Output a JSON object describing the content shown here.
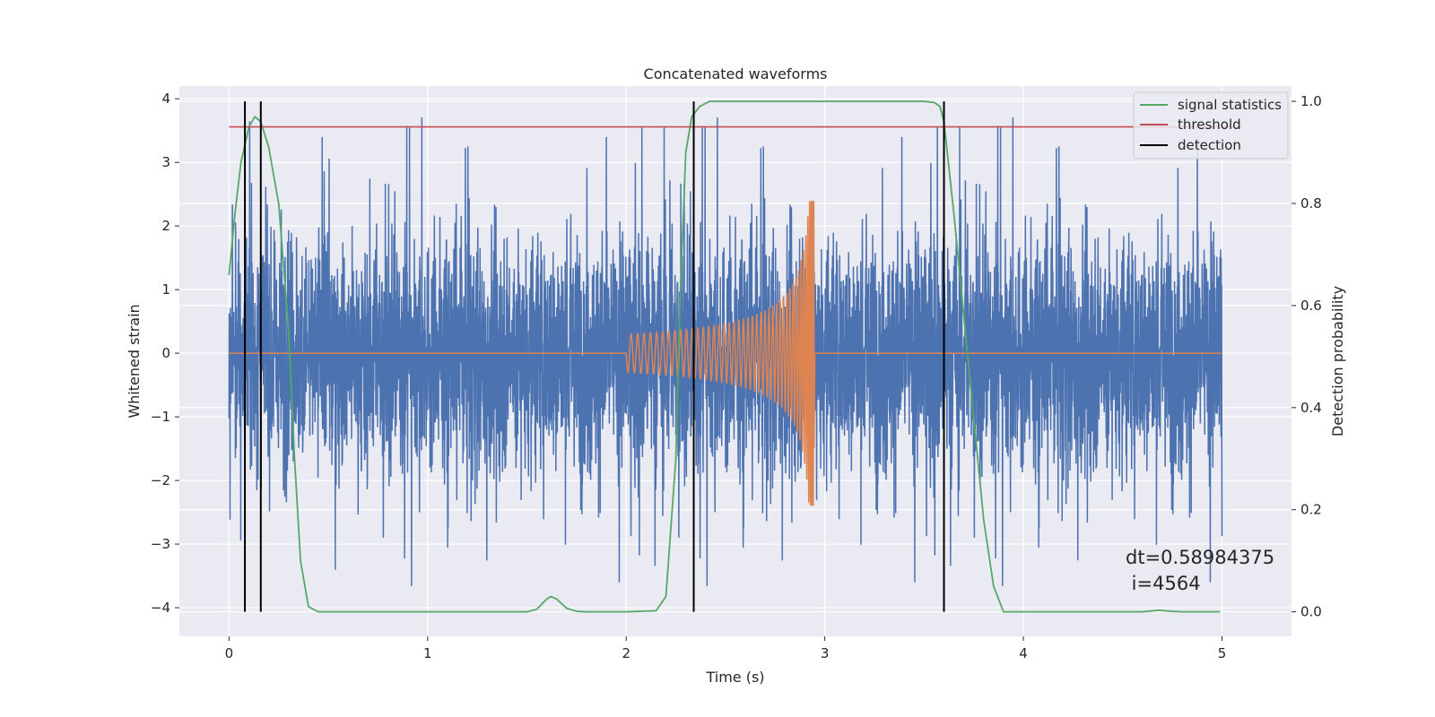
{
  "chart_data": {
    "type": "line",
    "title": "Concatenated waveforms",
    "xlabel": "Time (s)",
    "ylabel_left": "Whitened strain",
    "ylabel_right": "Detection probability",
    "xlim": [
      -0.25,
      5.35
    ],
    "ylim_left": [
      -4.45,
      4.2
    ],
    "ylim_right": [
      -0.048,
      1.03
    ],
    "x_ticks": [
      0,
      1,
      2,
      3,
      4,
      5
    ],
    "y_ticks_left": [
      -4,
      -3,
      -2,
      -1,
      0,
      1,
      2,
      3,
      4
    ],
    "y_ticks_right": [
      0.0,
      0.2,
      0.4,
      0.6,
      0.8,
      1.0
    ],
    "x_tick_labels": [
      "0",
      "1",
      "2",
      "3",
      "4",
      "5"
    ],
    "y_tick_labels_left": [
      "−4",
      "−3",
      "−2",
      "−1",
      "0",
      "1",
      "2",
      "3",
      "4"
    ],
    "y_tick_labels_right": [
      "0.0",
      "0.2",
      "0.4",
      "0.6",
      "0.8",
      "1.0"
    ],
    "grid": true,
    "legend_position": "top-right",
    "series": [
      {
        "name": "",
        "axis": "left",
        "kind": "noise",
        "x_range": [
          0,
          5
        ],
        "typical_amplitude": 1.0,
        "peak_amplitude": 3.8,
        "color": "#4c72b0"
      },
      {
        "name": "",
        "axis": "left",
        "kind": "chirp",
        "baseline": 0,
        "chirp_start": 2.0,
        "chirp_end": 2.95,
        "start_amplitude": 0.3,
        "peak_amplitude": 2.4,
        "color": "#dd8452"
      },
      {
        "name": "signal statistics",
        "axis": "right",
        "color": "#55a868",
        "x": [
          0,
          0.03,
          0.06,
          0.1,
          0.13,
          0.16,
          0.2,
          0.25,
          0.3,
          0.33,
          0.36,
          0.4,
          0.45,
          0.6,
          1.0,
          1.5,
          1.55,
          1.6,
          1.62,
          1.65,
          1.7,
          1.75,
          1.8,
          2.0,
          2.15,
          2.2,
          2.25,
          2.27,
          2.3,
          2.33,
          2.37,
          2.42,
          2.5,
          3.0,
          3.5,
          3.55,
          3.58,
          3.6,
          3.65,
          3.7,
          3.75,
          3.8,
          3.85,
          3.9,
          4.2,
          4.6,
          4.68,
          4.75,
          4.8,
          4.99
        ],
        "y": [
          0.66,
          0.78,
          0.88,
          0.95,
          0.97,
          0.96,
          0.91,
          0.8,
          0.55,
          0.3,
          0.1,
          0.01,
          0.0,
          0.0,
          0.0,
          0.0,
          0.005,
          0.025,
          0.03,
          0.025,
          0.007,
          0.001,
          0.0,
          0.0,
          0.002,
          0.03,
          0.3,
          0.6,
          0.9,
          0.97,
          0.99,
          1.0,
          1.0,
          1.0,
          1.0,
          0.998,
          0.99,
          0.96,
          0.78,
          0.58,
          0.38,
          0.18,
          0.05,
          0.0,
          0.0,
          0.0,
          0.003,
          0.001,
          0.0,
          0.0
        ]
      },
      {
        "name": "threshold",
        "axis": "right",
        "color": "#c44e52",
        "x": [
          0,
          5.1
        ],
        "y": [
          0.95,
          0.95
        ]
      },
      {
        "name": "detection",
        "axis": "right",
        "color": "#000000",
        "vlines_x": [
          0.08,
          0.16,
          2.34,
          3.6
        ],
        "ymin": 0.0,
        "ymax": 1.0
      }
    ],
    "annotation_lines": [
      "dt=0.58984375",
      " i=4564"
    ]
  }
}
